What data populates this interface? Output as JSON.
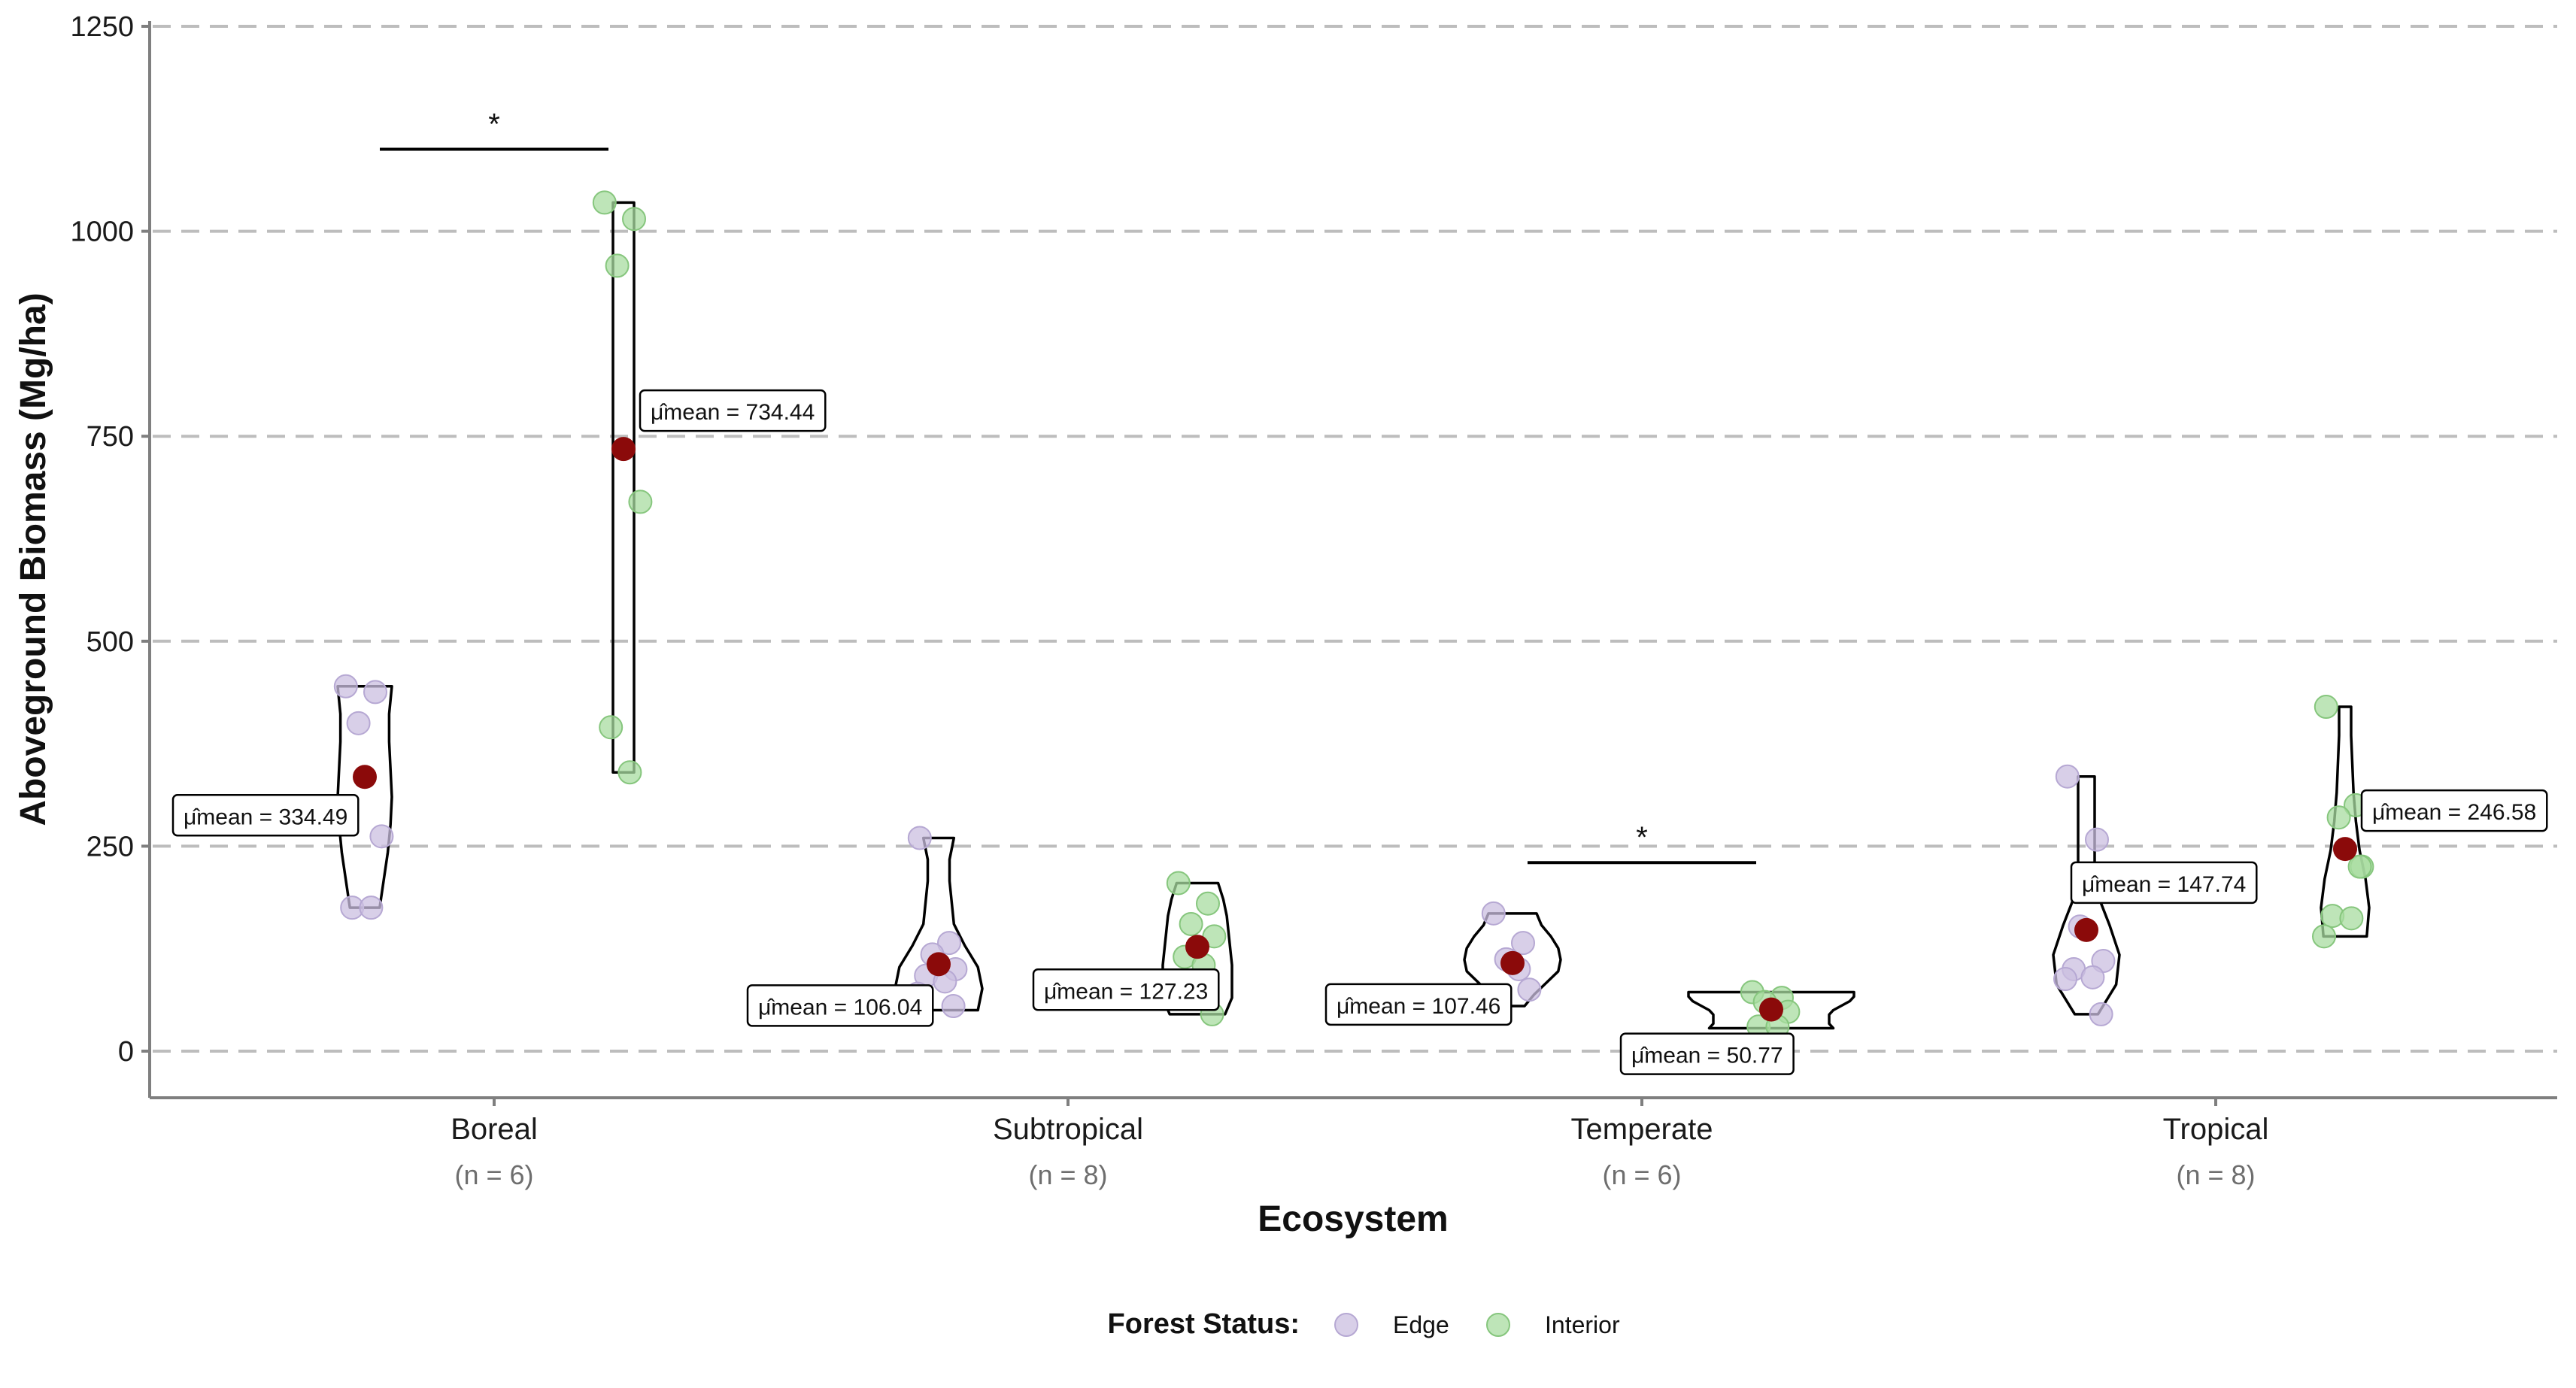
{
  "chart_data": {
    "type": "violin",
    "xlabel": "Ecosystem",
    "ylabel": "Aboveground Biomass (Mg/ha)",
    "ylim": [
      -60,
      1250
    ],
    "yticks": [
      0,
      250,
      500,
      750,
      1000,
      1250
    ],
    "grid": "horizontal dashed",
    "legend": {
      "title": "Forest Status:",
      "position": "bottom",
      "entries": [
        {
          "name": "Edge",
          "color": "#cbbfe0"
        },
        {
          "name": "Interior",
          "color": "#a8dca0"
        }
      ]
    },
    "colors": {
      "mean_point": "#8b0a0a",
      "edge_point": "#cbbfe0",
      "interior_point": "#a8dca0",
      "grid": "#bdbdbd",
      "axis": "#7f7f7f"
    },
    "categories": [
      {
        "name": "Boreal",
        "n_label": "(n = 6)"
      },
      {
        "name": "Subtropical",
        "n_label": "(n = 8)"
      },
      {
        "name": "Temperate",
        "n_label": "(n = 6)"
      },
      {
        "name": "Tropical",
        "n_label": "(n = 8)"
      }
    ],
    "groups": [
      {
        "category": "Boreal",
        "status": "Edge",
        "mean": 334.49,
        "mean_label": "μ̂mean = 334.49",
        "points": [
          445,
          438,
          400,
          262,
          175,
          175
        ],
        "violin": [
          175,
          445
        ]
      },
      {
        "category": "Boreal",
        "status": "Interior",
        "mean": 734.44,
        "mean_label": "μ̂mean = 734.44",
        "points": [
          1035,
          1015,
          958,
          670,
          395,
          340
        ],
        "violin": [
          340,
          1035
        ]
      },
      {
        "category": "Subtropical",
        "status": "Edge",
        "mean": 106.04,
        "mean_label": "μ̂mean = 106.04",
        "points": [
          260,
          132,
          118,
          100,
          92,
          85,
          70,
          55
        ],
        "violin": [
          50,
          260
        ]
      },
      {
        "category": "Subtropical",
        "status": "Interior",
        "mean": 127.23,
        "mean_label": "μ̂mean = 127.23",
        "points": [
          205,
          180,
          155,
          140,
          115,
          105,
          75,
          45
        ],
        "violin": [
          45,
          205
        ]
      },
      {
        "category": "Temperate",
        "status": "Edge",
        "mean": 107.46,
        "mean_label": "μ̂mean = 107.46",
        "points": [
          168,
          132,
          112,
          75,
          55,
          100
        ],
        "violin": [
          55,
          168
        ]
      },
      {
        "category": "Temperate",
        "status": "Interior",
        "mean": 50.77,
        "mean_label": "μ̂mean = 50.77",
        "points": [
          72,
          65,
          60,
          48,
          30,
          30
        ],
        "violin": [
          28,
          72
        ]
      },
      {
        "category": "Tropical",
        "status": "Edge",
        "mean": 147.74,
        "mean_label": "μ̂mean = 147.74",
        "points": [
          335,
          258,
          152,
          110,
          100,
          90,
          88,
          45
        ],
        "violin": [
          45,
          335
        ]
      },
      {
        "category": "Tropical",
        "status": "Interior",
        "mean": 246.58,
        "mean_label": "μ̂mean = 246.58",
        "points": [
          420,
          300,
          285,
          225,
          165,
          162,
          140,
          225
        ],
        "violin": [
          140,
          420
        ]
      }
    ],
    "significance": [
      {
        "category": "Boreal",
        "label": "*",
        "y": 1100
      },
      {
        "category": "Temperate",
        "label": "*",
        "y": 230
      }
    ]
  }
}
